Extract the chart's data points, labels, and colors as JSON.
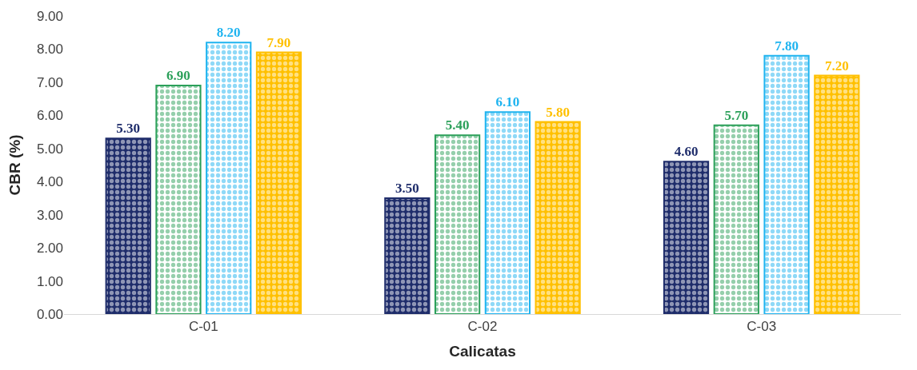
{
  "chart_data": {
    "type": "bar",
    "xlabel": "Calicatas",
    "ylabel": "CBR (%)",
    "categories": [
      "C-01",
      "C-02",
      "C-03"
    ],
    "series": [
      {
        "color": "#1f2d6b",
        "values": [
          5.3,
          3.5,
          4.6
        ],
        "value_labels": [
          "5.30",
          "3.50",
          "4.60"
        ]
      },
      {
        "color": "#2ca05a",
        "values": [
          6.9,
          5.4,
          5.7
        ],
        "value_labels": [
          "6.90",
          "5.40",
          "5.70"
        ]
      },
      {
        "color": "#1fb4f0",
        "values": [
          8.2,
          6.1,
          7.8
        ],
        "value_labels": [
          "8.20",
          "6.10",
          "7.80"
        ]
      },
      {
        "color": "#ffc000",
        "values": [
          7.9,
          5.8,
          7.2
        ],
        "value_labels": [
          "7.90",
          "5.80",
          "7.20"
        ]
      }
    ],
    "ylim": [
      0,
      9
    ],
    "yticks": [
      {
        "value": 0,
        "label": "0.00"
      },
      {
        "value": 1,
        "label": "1.00"
      },
      {
        "value": 2,
        "label": "2.00"
      },
      {
        "value": 3,
        "label": "3.00"
      },
      {
        "value": 4,
        "label": "4.00"
      },
      {
        "value": 5,
        "label": "5.00"
      },
      {
        "value": 6,
        "label": "6.00"
      },
      {
        "value": 7,
        "label": "7.00"
      },
      {
        "value": 8,
        "label": "8.00"
      },
      {
        "value": 9,
        "label": "9.00"
      }
    ],
    "legend": false
  }
}
